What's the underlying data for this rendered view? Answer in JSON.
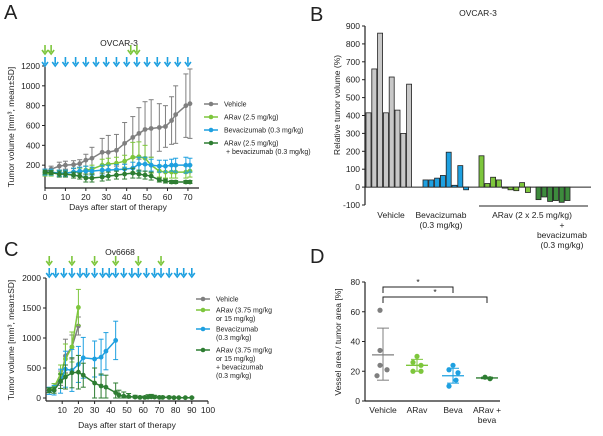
{
  "colors": {
    "vehicle": "#7f7f7f",
    "arav": "#7dc63c",
    "beva": "#1ea0e0",
    "combo": "#2e7d32",
    "combo_bar": "#3d8b3d",
    "vehicle_bar": "#c8c8c8"
  },
  "chart_data": [
    {
      "panel": "A",
      "type": "line",
      "title": "OVCAR-3",
      "xlabel": "Days after start of therapy",
      "ylabel": "Tumor volume [mm³, mean±SD]",
      "xlim": [
        0,
        72
      ],
      "ylim": [
        0,
        1200
      ],
      "xticks": [
        "0",
        "10",
        "20",
        "30",
        "40",
        "50",
        "60",
        "70"
      ],
      "yticks": [
        "200",
        "400",
        "600",
        "800",
        "1000",
        "1200"
      ],
      "legend_position": "right",
      "dosing_arrows": {
        "arav_days": [
          0,
          3,
          42,
          45
        ],
        "beva_days": [
          0,
          5,
          10,
          15,
          20,
          25,
          30,
          35,
          40,
          45,
          50,
          55,
          60,
          65,
          70
        ]
      },
      "series": [
        {
          "name": "Vehicle",
          "key": "vehicle",
          "x": [
            0,
            3,
            7,
            10,
            14,
            17,
            20,
            23,
            28,
            31,
            35,
            39,
            43,
            46,
            49,
            52,
            56,
            59,
            62,
            64,
            69,
            71
          ],
          "y": [
            130,
            160,
            190,
            200,
            205,
            215,
            250,
            270,
            330,
            330,
            350,
            420,
            480,
            520,
            560,
            570,
            580,
            590,
            650,
            710,
            800,
            820
          ],
          "sd": [
            30,
            30,
            40,
            40,
            40,
            40,
            60,
            110,
            140,
            170,
            160,
            210,
            210,
            260,
            280,
            290,
            240,
            210,
            240,
            290,
            320,
            350
          ]
        },
        {
          "name": "ARav (2.5 mg/kg)",
          "key": "arav",
          "x": [
            0,
            3,
            7,
            10,
            14,
            17,
            20,
            23,
            28,
            31,
            35,
            39,
            43,
            46,
            49,
            52,
            56,
            59,
            62,
            64,
            69,
            71
          ],
          "y": [
            110,
            120,
            120,
            120,
            130,
            130,
            150,
            160,
            200,
            210,
            220,
            240,
            280,
            285,
            270,
            200,
            140,
            130,
            130,
            130,
            130,
            140
          ],
          "sd": [
            20,
            30,
            30,
            30,
            40,
            40,
            40,
            40,
            60,
            60,
            60,
            60,
            150,
            150,
            130,
            80,
            60,
            60,
            60,
            60,
            60,
            60
          ]
        },
        {
          "name": "Bevacizumab (0.3 mg/kg)",
          "key": "beva",
          "x": [
            0,
            3,
            7,
            10,
            14,
            17,
            20,
            23,
            28,
            31,
            35,
            39,
            43,
            46,
            49,
            52,
            56,
            59,
            62,
            64,
            69,
            71
          ],
          "y": [
            130,
            130,
            120,
            120,
            130,
            140,
            140,
            140,
            150,
            150,
            155,
            160,
            170,
            210,
            210,
            200,
            190,
            190,
            200,
            200,
            200,
            200
          ],
          "sd": [
            30,
            30,
            30,
            30,
            40,
            40,
            50,
            40,
            50,
            50,
            50,
            50,
            60,
            70,
            70,
            60,
            60,
            60,
            60,
            70,
            80,
            70
          ]
        },
        {
          "name": "ARav (2.5 mg/kg) + bevacizumab (0.3 mg/kg)",
          "key": "combo",
          "x": [
            0,
            3,
            7,
            10,
            14,
            17,
            20,
            23,
            28,
            31,
            35,
            39,
            43,
            46,
            49,
            52,
            56,
            59,
            62,
            64,
            69,
            71
          ],
          "y": [
            130,
            125,
            110,
            110,
            100,
            90,
            70,
            70,
            80,
            90,
            100,
            110,
            120,
            110,
            100,
            90,
            50,
            40,
            30,
            30,
            30,
            30
          ],
          "sd": [
            20,
            20,
            30,
            30,
            30,
            30,
            40,
            40,
            40,
            40,
            40,
            50,
            50,
            40,
            40,
            40,
            20,
            20,
            15,
            15,
            15,
            15
          ]
        }
      ]
    },
    {
      "panel": "B",
      "type": "bar",
      "title": "OVCAR-3",
      "ylabel": "Relative tumor volume (%)",
      "ylim": [
        -100,
        900
      ],
      "yticks": [
        "-100",
        "0",
        "100",
        "200",
        "300",
        "400",
        "500",
        "600",
        "700",
        "800",
        "900"
      ],
      "groups": [
        {
          "name": "Vehicle",
          "key": "vehicle_bar",
          "values": [
            415,
            660,
            860,
            415,
            615,
            430,
            300,
            575
          ]
        },
        {
          "name": "Bevacizumab (0.3 mg/kg)",
          "key": "beva",
          "values": [
            40,
            40,
            50,
            65,
            195,
            10,
            120,
            -15
          ]
        },
        {
          "name": "ARav (2 x 2.5 mg/kg)",
          "key": "arav",
          "values": [
            175,
            20,
            55,
            40,
            -5,
            -15,
            -20,
            25,
            -30
          ]
        },
        {
          "name": "ARav + bevacizumab (0.3 mg/kg)",
          "key": "combo_bar",
          "values": [
            -70,
            -55,
            -80,
            -75,
            -85,
            -75
          ]
        }
      ],
      "category_labels": {
        "vehicle": "Vehicle",
        "beva_line1": "Bevacizumab",
        "beva_line2": "(0.3 mg/kg)",
        "arav_line1": "ARav (2 x 2.5 mg/kg)",
        "plus": "+",
        "combo_line1": "bevacizumab",
        "combo_line2": "(0.3 mg/kg)"
      }
    },
    {
      "panel": "C",
      "type": "line",
      "title": "Ov6668",
      "xlabel": "Days after start of therapy",
      "ylabel": "Tumor volume [mm³, mean±SD]",
      "xlim": [
        0,
        100
      ],
      "ylim": [
        0,
        2000
      ],
      "xticks": [
        "10",
        "20",
        "30",
        "40",
        "50",
        "60",
        "70",
        "80",
        "90",
        "100"
      ],
      "yticks": [
        "0",
        "500",
        "1000",
        "1500",
        "2000"
      ],
      "legend_position": "right",
      "dosing_arrows": {
        "arav_days": [
          2,
          16,
          30,
          43,
          57,
          71
        ],
        "beva_days": [
          2,
          6,
          11,
          16,
          21,
          25,
          30,
          35,
          39,
          43,
          48,
          53,
          57,
          62,
          67,
          71,
          76,
          81,
          85,
          90
        ]
      },
      "series": [
        {
          "name": "Vehicle",
          "key": "vehicle",
          "x": [
            2,
            5,
            9,
            12,
            16,
            20
          ],
          "y": [
            130,
            180,
            330,
            700,
            850,
            1200
          ],
          "sd": [
            40,
            60,
            120,
            280,
            200,
            150
          ]
        },
        {
          "name": "ARav (3.75 mg/kg or 15 mg/kg)",
          "key": "arav",
          "x": [
            2,
            5,
            9,
            12,
            16,
            20
          ],
          "y": [
            130,
            180,
            400,
            650,
            850,
            1510
          ],
          "sd": [
            40,
            60,
            150,
            250,
            250,
            300
          ]
        },
        {
          "name": "Bevacizumab (0.3 mg/kg)",
          "key": "beva",
          "x": [
            2,
            5,
            9,
            12,
            16,
            20,
            23,
            30,
            34,
            37,
            43
          ],
          "y": [
            120,
            130,
            280,
            480,
            460,
            560,
            670,
            650,
            680,
            780,
            960
          ],
          "sd": [
            60,
            80,
            200,
            300,
            350,
            300,
            340,
            300,
            300,
            310,
            320
          ]
        },
        {
          "name": "ARav (3.75 mg/kg or 15 mg/kg) + bevacizumab (0.3 mg/kg)",
          "key": "combo",
          "x": [
            2,
            5,
            9,
            12,
            16,
            20,
            23,
            30,
            34,
            37,
            43,
            45,
            48,
            51,
            55,
            58,
            61,
            63,
            65,
            67,
            70,
            72,
            76,
            79,
            82,
            86,
            90
          ],
          "y": [
            130,
            130,
            280,
            350,
            420,
            430,
            380,
            250,
            200,
            180,
            90,
            50,
            30,
            25,
            15,
            10,
            10,
            15,
            20,
            15,
            10,
            10,
            10,
            5,
            5,
            5,
            5
          ],
          "sd": [
            40,
            50,
            120,
            200,
            250,
            280,
            200,
            250,
            200,
            200,
            160,
            80,
            70,
            50,
            30,
            20,
            20,
            40,
            40,
            30,
            20,
            20,
            20,
            10,
            10,
            10,
            10
          ]
        }
      ]
    },
    {
      "panel": "D",
      "type": "scatter",
      "ylabel": "Vessel area / tumor area [%]",
      "ylim": [
        0,
        80
      ],
      "yticks": [
        "0",
        "20",
        "40",
        "60",
        "80"
      ],
      "categories": [
        "Vehicle",
        "ARav",
        "Beva",
        "ARav +|beva"
      ],
      "groups": [
        {
          "name": "Vehicle",
          "key": "vehicle",
          "points": [
            61,
            34,
            24,
            21,
            17
          ],
          "mean": 31,
          "sd_low": 14,
          "sd_high": 49
        },
        {
          "name": "ARav",
          "key": "arav",
          "points": [
            30,
            26,
            24,
            20,
            20
          ],
          "mean": 24,
          "sd_low": 20,
          "sd_high": 28
        },
        {
          "name": "Beva",
          "key": "beva",
          "points": [
            24,
            21,
            19,
            14,
            10
          ],
          "mean": 17,
          "sd_low": 12,
          "sd_high": 22
        },
        {
          "name": "ARav + beva",
          "key": "combo",
          "points": [
            16,
            15
          ],
          "mean": 15.5,
          "sd_low": 15,
          "sd_high": 16
        }
      ],
      "significance": [
        {
          "from": "Vehicle",
          "to": "Beva",
          "label": "*"
        },
        {
          "from": "Vehicle",
          "to": "ARav + beva",
          "label": "*"
        }
      ]
    }
  ],
  "panels": {
    "a": "A",
    "b": "B",
    "c": "C",
    "d": "D"
  }
}
